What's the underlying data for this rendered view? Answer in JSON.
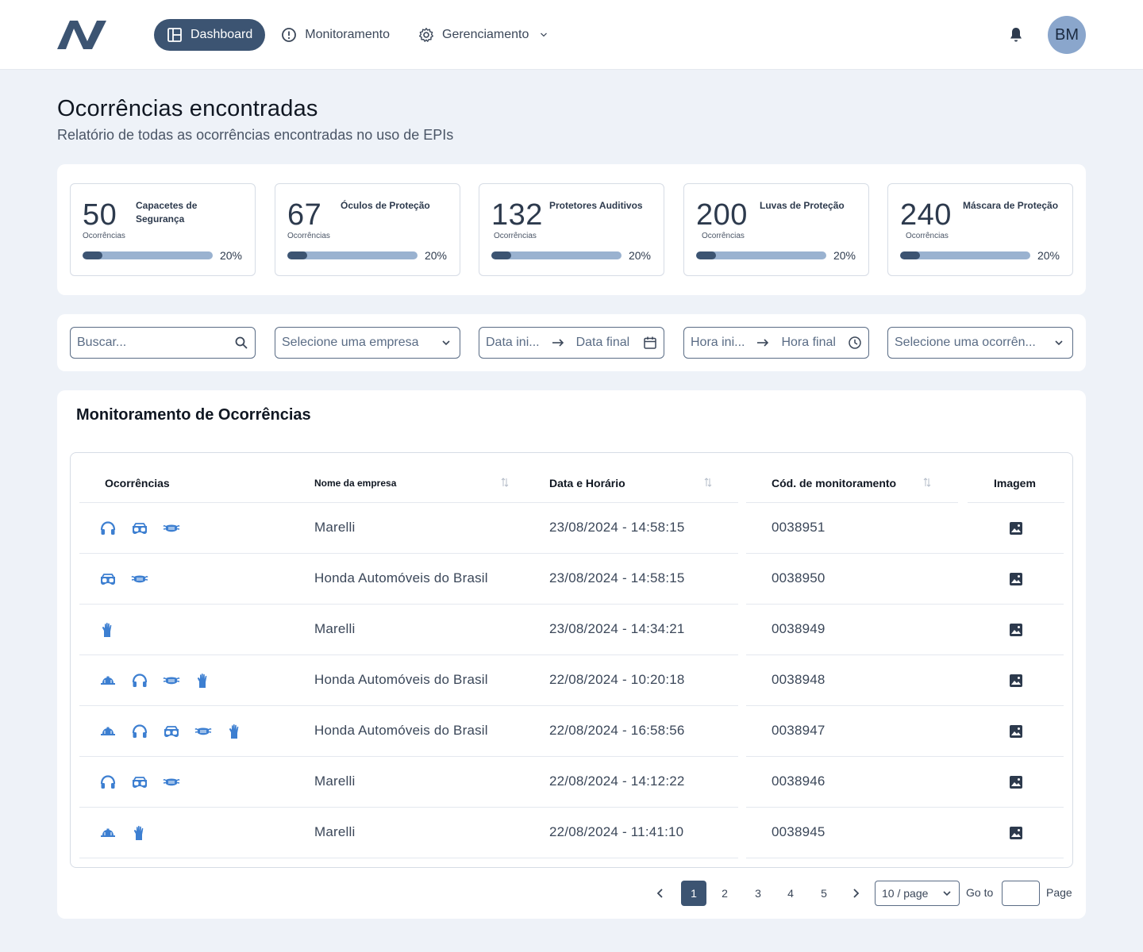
{
  "header": {
    "nav": [
      {
        "label": "Dashboard",
        "icon": "layout-icon",
        "active": true
      },
      {
        "label": "Monitoramento",
        "icon": "alert-circle-icon",
        "active": false
      },
      {
        "label": "Gerenciamento",
        "icon": "gear-icon",
        "active": false
      }
    ],
    "avatar_initials": "BM"
  },
  "page": {
    "title": "Ocorrências encontradas",
    "subtitle": "Relatório de todas as ocorrências encontradas no uso de EPIs"
  },
  "stats": [
    {
      "value": "50",
      "label": "Capacetes de Segurança",
      "sub": "Ocorrências",
      "percent": "20%",
      "progress": 0.15
    },
    {
      "value": "67",
      "label": "Óculos de Proteção",
      "sub": "Ocorrências",
      "percent": "20%",
      "progress": 0.15
    },
    {
      "value": "132",
      "label": "Protetores Auditivos",
      "sub": "Ocorrências",
      "percent": "20%",
      "progress": 0.15
    },
    {
      "value": "200",
      "label": "Luvas de Proteção",
      "sub": "Ocorrências",
      "percent": "20%",
      "progress": 0.15
    },
    {
      "value": "240",
      "label": "Máscara de Proteção",
      "sub": "Ocorrências",
      "percent": "20%",
      "progress": 0.15
    }
  ],
  "filters": {
    "search_placeholder": "Buscar...",
    "company_placeholder": "Selecione uma empresa",
    "date_start": "Data ini...",
    "date_end": "Data final",
    "time_start": "Hora ini...",
    "time_end": "Hora final",
    "occurrence_placeholder": "Selecione uma ocorrên..."
  },
  "table": {
    "title": "Monitoramento de Ocorrências",
    "columns": [
      "Ocorrências",
      "Nome da empresa",
      "Data e Horário",
      "Cód. de monitoramento",
      "Imagem"
    ],
    "rows": [
      {
        "epis": [
          "headphones-icon",
          "goggles-icon",
          "mask-icon"
        ],
        "company": "Marelli",
        "datetime": "23/08/2024 - 14:58:15",
        "code": "0038951"
      },
      {
        "epis": [
          "goggles-icon",
          "mask-icon"
        ],
        "company": "Honda Automóveis do Brasil",
        "datetime": "23/08/2024 - 14:58:15",
        "code": "0038950"
      },
      {
        "epis": [
          "glove-icon"
        ],
        "company": "Marelli",
        "datetime": "23/08/2024 - 14:34:21",
        "code": "0038949"
      },
      {
        "epis": [
          "helmet-icon",
          "headphones-icon",
          "mask-icon",
          "glove-icon"
        ],
        "company": "Honda Automóveis do Brasil",
        "datetime": "22/08/2024 - 10:20:18",
        "code": "0038948"
      },
      {
        "epis": [
          "helmet-icon",
          "headphones-icon",
          "goggles-icon",
          "mask-icon",
          "glove-icon"
        ],
        "company": "Honda Automóveis do Brasil",
        "datetime": "22/08/2024 - 16:58:56",
        "code": "0038947"
      },
      {
        "epis": [
          "headphones-icon",
          "goggles-icon",
          "mask-icon"
        ],
        "company": "Marelli",
        "datetime": "22/08/2024 - 14:12:22",
        "code": "0038946"
      },
      {
        "epis": [
          "helmet-icon",
          "glove-icon"
        ],
        "company": "Marelli",
        "datetime": "22/08/2024 - 11:41:10",
        "code": "0038945"
      }
    ]
  },
  "pagination": {
    "pages": [
      "1",
      "2",
      "3",
      "4",
      "5"
    ],
    "current": "1",
    "page_size": "10 / page",
    "goto_label": "Go to",
    "page_label": "Page"
  },
  "colors": {
    "accent": "#3c5472",
    "epi_icon": "#3d7fd1",
    "progress_track": "#9ab2d0"
  }
}
